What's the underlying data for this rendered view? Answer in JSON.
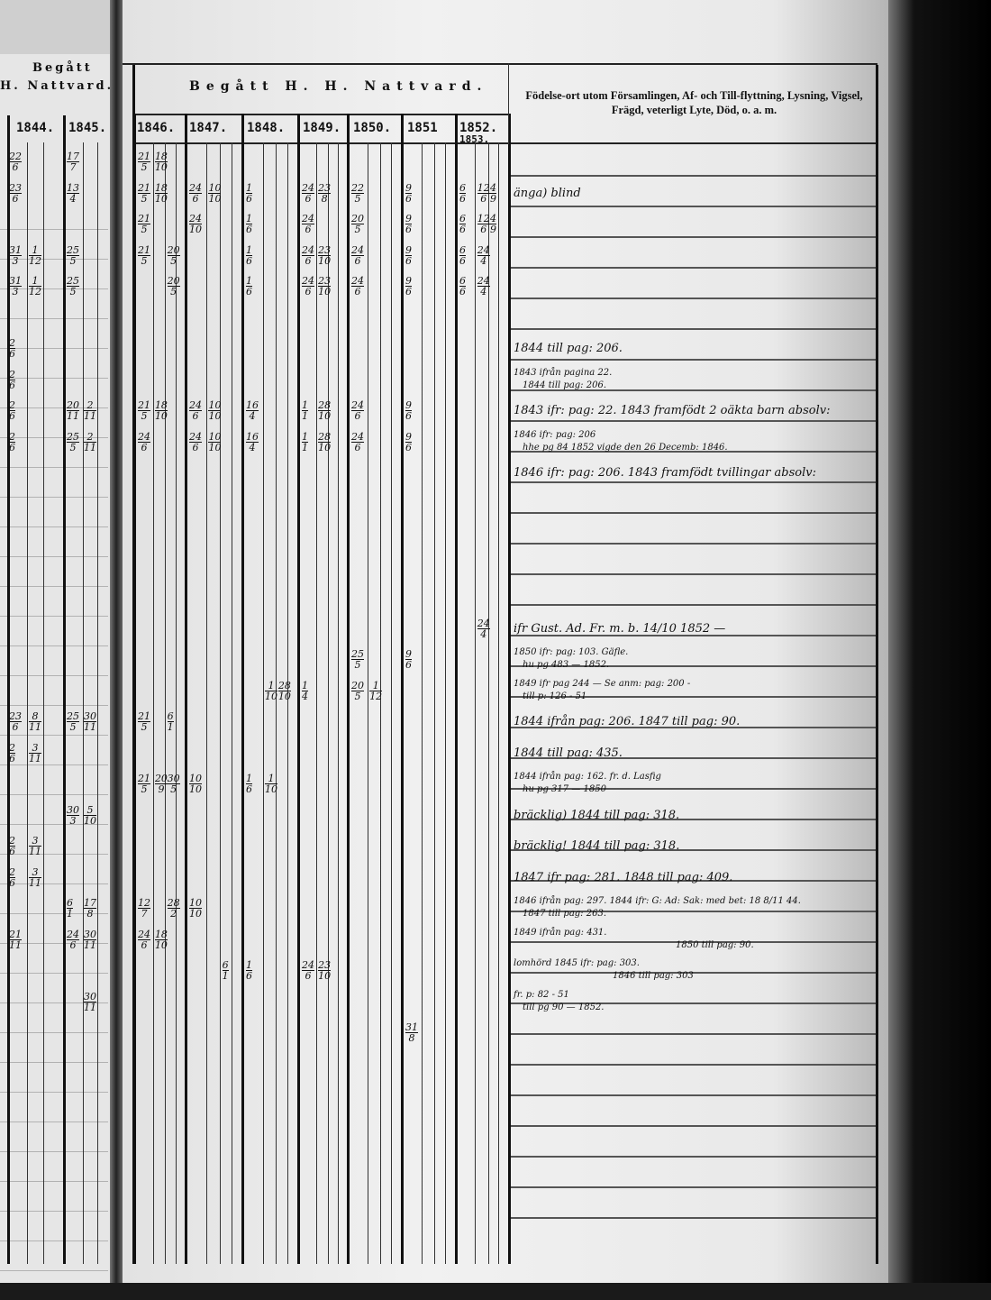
{
  "left_page": {
    "header": [
      "Begått",
      "H. Nattvard."
    ],
    "years": [
      "1844.",
      "1845."
    ],
    "entries": [
      {
        "col": 0,
        "row": 0,
        "v": [
          "22",
          "6"
        ]
      },
      {
        "col": 2,
        "row": 0,
        "v": [
          "17",
          "7"
        ]
      },
      {
        "col": 0,
        "row": 1,
        "v": [
          "23",
          "6"
        ]
      },
      {
        "col": 2,
        "row": 1,
        "v": [
          "13",
          "4"
        ]
      },
      {
        "col": 0,
        "row": 3,
        "v": [
          "31",
          "3"
        ]
      },
      {
        "col": 1,
        "row": 3,
        "v": [
          "1",
          "12"
        ]
      },
      {
        "col": 2,
        "row": 3,
        "v": [
          "25",
          "5"
        ]
      },
      {
        "col": 0,
        "row": 4,
        "v": [
          "31",
          "3"
        ]
      },
      {
        "col": 1,
        "row": 4,
        "v": [
          "1",
          "12"
        ]
      },
      {
        "col": 2,
        "row": 4,
        "v": [
          "25",
          "5"
        ]
      },
      {
        "col": 0,
        "row": 6,
        "v": [
          "2",
          "6"
        ]
      },
      {
        "col": 0,
        "row": 7,
        "v": [
          "2",
          "6"
        ]
      },
      {
        "col": 0,
        "row": 8,
        "v": [
          "2",
          "6"
        ]
      },
      {
        "col": 2,
        "row": 8,
        "v": [
          "20",
          "11"
        ]
      },
      {
        "col": 3,
        "row": 8,
        "v": [
          "2",
          "11"
        ]
      },
      {
        "col": 0,
        "row": 9,
        "v": [
          "2",
          "6"
        ]
      },
      {
        "col": 2,
        "row": 9,
        "v": [
          "25",
          "5"
        ]
      },
      {
        "col": 3,
        "row": 9,
        "v": [
          "2",
          "11"
        ]
      },
      {
        "col": 0,
        "row": 18,
        "v": [
          "23",
          "6"
        ]
      },
      {
        "col": 1,
        "row": 18,
        "v": [
          "8",
          "11"
        ]
      },
      {
        "col": 2,
        "row": 18,
        "v": [
          "25",
          "5"
        ]
      },
      {
        "col": 3,
        "row": 18,
        "v": [
          "30",
          "11"
        ]
      },
      {
        "col": 0,
        "row": 19,
        "v": [
          "2",
          "6"
        ]
      },
      {
        "col": 1,
        "row": 19,
        "v": [
          "3",
          "11"
        ]
      },
      {
        "col": 2,
        "row": 21,
        "v": [
          "30",
          "3"
        ]
      },
      {
        "col": 3,
        "row": 21,
        "v": [
          "5",
          "10"
        ]
      },
      {
        "col": 0,
        "row": 22,
        "v": [
          "2",
          "6"
        ]
      },
      {
        "col": 1,
        "row": 22,
        "v": [
          "3",
          "11"
        ]
      },
      {
        "col": 0,
        "row": 23,
        "v": [
          "2",
          "6"
        ]
      },
      {
        "col": 1,
        "row": 23,
        "v": [
          "3",
          "11"
        ]
      },
      {
        "col": 2,
        "row": 24,
        "v": [
          "6",
          "1"
        ]
      },
      {
        "col": 3,
        "row": 24,
        "v": [
          "17",
          "8"
        ]
      },
      {
        "col": 0,
        "row": 25,
        "v": [
          "21",
          "11"
        ]
      },
      {
        "col": 2,
        "row": 25,
        "v": [
          "24",
          "6"
        ]
      },
      {
        "col": 3,
        "row": 25,
        "v": [
          "30",
          "11"
        ]
      },
      {
        "col": 3,
        "row": 27,
        "v": [
          "30",
          "11"
        ]
      }
    ]
  },
  "right_page": {
    "header_title": "Begått H. H. Nattvard.",
    "years": [
      "1846.",
      "1847.",
      "1848.",
      "1849.",
      "1850.",
      "1851",
      "1852.",
      "1853."
    ],
    "notes_header": "Födelse-ort utom Församlingen, Af- och Till-flyttning, Lysning, Vigsel, Frägd, veterligt Lyte, Död, o. a. m.",
    "entries": [
      {
        "col": 0,
        "row": 0,
        "v": [
          "21",
          "5"
        ]
      },
      {
        "col": 1,
        "row": 0,
        "v": [
          "18",
          "10"
        ]
      },
      {
        "col": 0,
        "row": 1,
        "v": [
          "21",
          "5"
        ]
      },
      {
        "col": 1,
        "row": 1,
        "v": [
          "18",
          "10"
        ]
      },
      {
        "col": 3,
        "row": 1,
        "v": [
          "24",
          "6"
        ]
      },
      {
        "col": 4,
        "row": 1,
        "v": [
          "10",
          "10"
        ]
      },
      {
        "col": 6,
        "row": 1,
        "v": [
          "1",
          "6"
        ]
      },
      {
        "col": 9,
        "row": 1,
        "v": [
          "24",
          "6"
        ]
      },
      {
        "col": 10,
        "row": 1,
        "v": [
          "23",
          "8"
        ]
      },
      {
        "col": 12,
        "row": 1,
        "v": [
          "22",
          "5"
        ]
      },
      {
        "col": 15,
        "row": 1,
        "v": [
          "9",
          "6"
        ]
      },
      {
        "col": 18,
        "row": 1,
        "v": [
          "6",
          "6"
        ]
      },
      {
        "col": 19,
        "row": 1,
        "v": [
          "12",
          "6"
        ]
      },
      {
        "col": 20,
        "row": 1,
        "v": [
          "4",
          "9"
        ]
      },
      {
        "col": 0,
        "row": 2,
        "v": [
          "21",
          "5"
        ]
      },
      {
        "col": 3,
        "row": 2,
        "v": [
          "24",
          "10"
        ]
      },
      {
        "col": 6,
        "row": 2,
        "v": [
          "1",
          "6"
        ]
      },
      {
        "col": 9,
        "row": 2,
        "v": [
          "24",
          "6"
        ]
      },
      {
        "col": 12,
        "row": 2,
        "v": [
          "20",
          "5"
        ]
      },
      {
        "col": 15,
        "row": 2,
        "v": [
          "9",
          "6"
        ]
      },
      {
        "col": 18,
        "row": 2,
        "v": [
          "6",
          "6"
        ]
      },
      {
        "col": 19,
        "row": 2,
        "v": [
          "12",
          "6"
        ]
      },
      {
        "col": 20,
        "row": 2,
        "v": [
          "4",
          "9"
        ]
      },
      {
        "col": 0,
        "row": 3,
        "v": [
          "21",
          "5"
        ]
      },
      {
        "col": 2,
        "row": 3,
        "v": [
          "20",
          "5"
        ]
      },
      {
        "col": 6,
        "row": 3,
        "v": [
          "1",
          "6"
        ]
      },
      {
        "col": 9,
        "row": 3,
        "v": [
          "24",
          "6"
        ]
      },
      {
        "col": 10,
        "row": 3,
        "v": [
          "23",
          "10"
        ]
      },
      {
        "col": 12,
        "row": 3,
        "v": [
          "24",
          "6"
        ]
      },
      {
        "col": 15,
        "row": 3,
        "v": [
          "9",
          "6"
        ]
      },
      {
        "col": 18,
        "row": 3,
        "v": [
          "6",
          "6"
        ]
      },
      {
        "col": 19,
        "row": 3,
        "v": [
          "24",
          "4"
        ]
      },
      {
        "col": 2,
        "row": 4,
        "v": [
          "20",
          "5"
        ]
      },
      {
        "col": 6,
        "row": 4,
        "v": [
          "1",
          "6"
        ]
      },
      {
        "col": 9,
        "row": 4,
        "v": [
          "24",
          "6"
        ]
      },
      {
        "col": 10,
        "row": 4,
        "v": [
          "23",
          "10"
        ]
      },
      {
        "col": 12,
        "row": 4,
        "v": [
          "24",
          "6"
        ]
      },
      {
        "col": 15,
        "row": 4,
        "v": [
          "9",
          "6"
        ]
      },
      {
        "col": 18,
        "row": 4,
        "v": [
          "6",
          "6"
        ]
      },
      {
        "col": 19,
        "row": 4,
        "v": [
          "24",
          "4"
        ]
      },
      {
        "col": 0,
        "row": 8,
        "v": [
          "21",
          "5"
        ]
      },
      {
        "col": 1,
        "row": 8,
        "v": [
          "18",
          "10"
        ]
      },
      {
        "col": 3,
        "row": 8,
        "v": [
          "24",
          "6"
        ]
      },
      {
        "col": 4,
        "row": 8,
        "v": [
          "10",
          "10"
        ]
      },
      {
        "col": 6,
        "row": 8,
        "v": [
          "16",
          "4"
        ]
      },
      {
        "col": 9,
        "row": 8,
        "v": [
          "1",
          "1"
        ]
      },
      {
        "col": 10,
        "row": 8,
        "v": [
          "28",
          "10"
        ]
      },
      {
        "col": 12,
        "row": 8,
        "v": [
          "24",
          "6"
        ]
      },
      {
        "col": 15,
        "row": 8,
        "v": [
          "9",
          "6"
        ]
      },
      {
        "col": 0,
        "row": 9,
        "v": [
          "24",
          "6"
        ]
      },
      {
        "col": 3,
        "row": 9,
        "v": [
          "24",
          "6"
        ]
      },
      {
        "col": 4,
        "row": 9,
        "v": [
          "10",
          "10"
        ]
      },
      {
        "col": 6,
        "row": 9,
        "v": [
          "16",
          "4"
        ]
      },
      {
        "col": 9,
        "row": 9,
        "v": [
          "1",
          "1"
        ]
      },
      {
        "col": 10,
        "row": 9,
        "v": [
          "28",
          "10"
        ]
      },
      {
        "col": 12,
        "row": 9,
        "v": [
          "24",
          "6"
        ]
      },
      {
        "col": 15,
        "row": 9,
        "v": [
          "9",
          "6"
        ]
      },
      {
        "col": 19,
        "row": 15,
        "v": [
          "24",
          "4"
        ]
      },
      {
        "col": 12,
        "row": 16,
        "v": [
          "25",
          "5"
        ]
      },
      {
        "col": 15,
        "row": 16,
        "v": [
          "9",
          "6"
        ]
      },
      {
        "col": 7,
        "row": 17,
        "v": [
          "1",
          "10"
        ]
      },
      {
        "col": 8,
        "row": 17,
        "v": [
          "28",
          "10"
        ]
      },
      {
        "col": 9,
        "row": 17,
        "v": [
          "1",
          "4"
        ]
      },
      {
        "col": 12,
        "row": 17,
        "v": [
          "20",
          "5"
        ]
      },
      {
        "col": 13,
        "row": 17,
        "v": [
          "1",
          "12"
        ]
      },
      {
        "col": 0,
        "row": 18,
        "v": [
          "21",
          "5"
        ]
      },
      {
        "col": 2,
        "row": 18,
        "v": [
          "6",
          "1"
        ]
      },
      {
        "col": 0,
        "row": 20,
        "v": [
          "21",
          "5"
        ]
      },
      {
        "col": 1,
        "row": 20,
        "v": [
          "20",
          "9"
        ]
      },
      {
        "col": 2,
        "row": 20,
        "v": [
          "30",
          "5"
        ]
      },
      {
        "col": 3,
        "row": 20,
        "v": [
          "10",
          "10"
        ]
      },
      {
        "col": 6,
        "row": 20,
        "v": [
          "1",
          "6"
        ]
      },
      {
        "col": 7,
        "row": 20,
        "v": [
          "1",
          "10"
        ]
      },
      {
        "col": 0,
        "row": 24,
        "v": [
          "12",
          "7"
        ]
      },
      {
        "col": 2,
        "row": 24,
        "v": [
          "28",
          "2"
        ]
      },
      {
        "col": 3,
        "row": 24,
        "v": [
          "10",
          "10"
        ]
      },
      {
        "col": 0,
        "row": 25,
        "v": [
          "24",
          "6"
        ]
      },
      {
        "col": 1,
        "row": 25,
        "v": [
          "18",
          "10"
        ]
      },
      {
        "col": 5,
        "row": 26,
        "v": [
          "6",
          "1"
        ]
      },
      {
        "col": 6,
        "row": 26,
        "v": [
          "1",
          "6"
        ]
      },
      {
        "col": 9,
        "row": 26,
        "v": [
          "24",
          "6"
        ]
      },
      {
        "col": 10,
        "row": 26,
        "v": [
          "23",
          "10"
        ]
      },
      {
        "col": 15,
        "row": 28,
        "v": [
          "31",
          "8"
        ]
      }
    ],
    "notes": [
      {
        "row": 1,
        "lines": [
          "änga) blind"
        ]
      },
      {
        "row": 6,
        "lines": [
          "1844 till pag: 206."
        ]
      },
      {
        "row": 7,
        "lines": [
          "1843 ifrån pagina 22.",
          "1844 till pag: 206."
        ]
      },
      {
        "row": 8,
        "lines": [
          "1843 ifr: pag: 22.  1843 framfödt 2 oäkta barn absolv:"
        ]
      },
      {
        "row": 9,
        "lines": [
          "1846 ifr: pag: 206",
          "hhe pg 84  1852 vigde den 26 Decemb: 1846."
        ]
      },
      {
        "row": 10,
        "lines": [
          "1846 ifr: pag: 206.  1843 framfödt tvillingar absolv:"
        ]
      },
      {
        "row": 15,
        "lines": [
          "ifr Gust. Ad. Fr. m. b. 14/10 1852 —"
        ]
      },
      {
        "row": 16,
        "lines": [
          "1850 ifr: pag: 103. Gäfle.",
          "hu pg 483 — 1852."
        ]
      },
      {
        "row": 17,
        "lines": [
          "1849 ifr pag 244 — Se anm: pag: 200 -",
          "till p: 126 - 51"
        ]
      },
      {
        "row": 18,
        "lines": [
          "1844 ifrån pag: 206.   1847 till pag: 90."
        ]
      },
      {
        "row": 19,
        "lines": [
          "1844 till pag: 435."
        ]
      },
      {
        "row": 20,
        "lines": [
          "1844 ifrån pag: 162. fr. d. Lasfig",
          "hu pg 317 — 1850"
        ]
      },
      {
        "row": 21,
        "lines": [
          "bräcklig) 1844 till pag: 318."
        ]
      },
      {
        "row": 22,
        "lines": [
          "bräcklig! 1844 till pag: 318."
        ]
      },
      {
        "row": 23,
        "lines": [
          "1847 ifr pag: 281.  1848 till pag: 409."
        ]
      },
      {
        "row": 24,
        "lines": [
          "1846 ifrån pag: 297.  1844 ifr: G: Ad: Sak: med bet: 18 8/11 44.",
          "1847 till pag: 263."
        ]
      },
      {
        "row": 25,
        "lines": [
          "1849 ifrån pag: 431.",
          "1850 till pag: 90."
        ]
      },
      {
        "row": 26,
        "lines": [
          "lomhörd  1845 ifr: pag: 303.",
          "1846 till pag: 303"
        ]
      },
      {
        "row": 27,
        "lines": [
          "fr. p: 82 - 51",
          "till pg 90 — 1852."
        ]
      }
    ]
  },
  "colors": {
    "paper": "#ececec",
    "ink": "#111111",
    "edge": "#000000"
  }
}
